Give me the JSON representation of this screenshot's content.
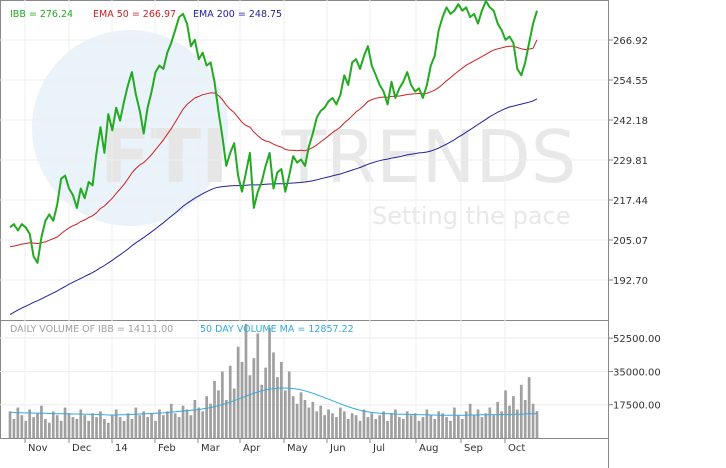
{
  "watermark": {
    "brand_a": "FTI",
    "brand_b": "TRENDS",
    "tagline": "Setting the pace"
  },
  "chart_data": [
    {
      "type": "line",
      "panel": "price",
      "legend": [
        {
          "text": "IBB = 276.24",
          "color": "#22aa22"
        },
        {
          "text": "EMA 50 = 266.97",
          "color": "#cc2222"
        },
        {
          "text": "EMA 200 = 248.75",
          "color": "#22229a"
        }
      ],
      "ylim": [
        180.33,
        279.3
      ],
      "y_ticks": [
        "266.92",
        "254.55",
        "242.18",
        "229.81",
        "217.44",
        "205.07",
        "192.70"
      ],
      "x_ticks": [
        "Nov",
        "Dec",
        "14",
        "Feb",
        "Mar",
        "Apr",
        "May",
        "Jun",
        "Jul",
        "Aug",
        "Sep",
        "Oct"
      ],
      "grid": true,
      "series": [
        {
          "name": "IBB",
          "color": "#22aa22",
          "values": [
            209,
            210,
            208,
            210,
            209,
            207,
            200,
            198,
            206,
            211,
            213,
            211,
            216,
            224,
            225,
            221,
            219,
            215,
            221,
            218,
            223,
            222,
            232,
            240,
            232,
            244,
            239,
            246,
            242,
            248,
            253,
            257,
            250,
            245,
            238,
            246,
            251,
            257,
            259,
            258,
            263,
            266,
            270,
            274,
            275,
            272,
            265,
            267,
            261,
            263,
            259,
            260,
            254,
            245,
            237,
            228,
            232,
            235,
            225,
            220,
            226,
            232,
            215,
            220,
            223,
            228,
            232,
            221,
            226,
            227,
            220,
            225,
            231,
            229,
            230,
            228,
            234,
            238,
            243,
            245,
            246,
            248,
            249,
            247,
            250,
            256,
            253,
            260,
            261,
            258,
            262,
            265,
            259,
            256,
            253,
            251,
            247,
            254,
            249,
            252,
            254,
            257,
            253,
            251,
            252,
            249,
            253,
            259,
            262,
            270,
            274,
            277,
            275,
            276,
            278,
            276,
            277,
            274,
            275,
            272,
            276,
            279,
            277,
            276,
            272,
            270,
            267,
            268,
            266,
            258,
            256,
            260,
            266,
            272,
            276
          ]
        },
        {
          "name": "EMA 50",
          "color": "#cc2222",
          "values": [
            203,
            203.2,
            203.5,
            203.8,
            204,
            204.2,
            204.1,
            204,
            204.2,
            204.5,
            205,
            205.5,
            206,
            207,
            208,
            208.8,
            209.5,
            210,
            210.8,
            211.3,
            212,
            212.6,
            213.5,
            214.8,
            215.6,
            216.8,
            218,
            219.5,
            220.8,
            222.3,
            224,
            225.8,
            227.2,
            228.3,
            229,
            230.2,
            231.5,
            233,
            234.5,
            236,
            237.8,
            239.5,
            241.5,
            243.5,
            245.5,
            247,
            248,
            249,
            249.5,
            250,
            250.3,
            250.6,
            250.5,
            249.8,
            248.5,
            246.8,
            245.5,
            244.5,
            243,
            241.5,
            240.5,
            240,
            238.5,
            237.3,
            236.3,
            235.7,
            235.4,
            234.7,
            234.2,
            233.8,
            233.1,
            232.8,
            232.8,
            232.7,
            232.8,
            232.7,
            233.1,
            233.7,
            234.5,
            235.4,
            236.3,
            237.3,
            238.3,
            239.1,
            240,
            241.3,
            242.3,
            243.5,
            244.7,
            245.6,
            246.7,
            247.9,
            248.5,
            248.9,
            249.1,
            249.3,
            249.2,
            249.5,
            249.5,
            249.6,
            249.8,
            250.1,
            250.2,
            250.3,
            250.4,
            250.3,
            250.4,
            250.9,
            251.4,
            252.2,
            253.2,
            254.3,
            255.3,
            256.3,
            257.3,
            258.2,
            259.1,
            259.8,
            260.5,
            261.1,
            261.8,
            262.5,
            263.2,
            263.8,
            264.2,
            264.5,
            264.8,
            265,
            265,
            264.6,
            264.2,
            264,
            264.1,
            264.4,
            266.97
          ]
        },
        {
          "name": "EMA 200",
          "color": "#22229a",
          "values": [
            182,
            182.7,
            183.4,
            184,
            184.6,
            185.2,
            185.8,
            186.3,
            186.9,
            187.5,
            188.1,
            188.7,
            189.3,
            190,
            190.7,
            191.4,
            192,
            192.6,
            193.2,
            193.8,
            194.4,
            195,
            195.7,
            196.5,
            197.2,
            198,
            198.8,
            199.7,
            200.5,
            201.4,
            202.3,
            203.3,
            204.2,
            205,
            205.8,
            206.7,
            207.6,
            208.5,
            209.5,
            210.4,
            211.4,
            212.4,
            213.4,
            214.4,
            215.5,
            216.4,
            217.2,
            218,
            218.7,
            219.4,
            220,
            220.6,
            221.1,
            221.4,
            221.6,
            221.7,
            221.8,
            221.9,
            221.9,
            221.9,
            222,
            222.1,
            222.1,
            222.1,
            222.2,
            222.3,
            222.4,
            222.4,
            222.5,
            222.5,
            222.5,
            222.6,
            222.7,
            222.8,
            222.9,
            223,
            223.2,
            223.4,
            223.7,
            224,
            224.3,
            224.6,
            224.9,
            225.2,
            225.5,
            225.9,
            226.3,
            226.7,
            227.1,
            227.5,
            228,
            228.5,
            228.9,
            229.3,
            229.6,
            229.9,
            230.1,
            230.4,
            230.6,
            230.8,
            231.1,
            231.4,
            231.6,
            231.8,
            232,
            232.1,
            232.3,
            232.6,
            233,
            233.5,
            234.1,
            234.7,
            235.4,
            236.1,
            236.9,
            237.6,
            238.4,
            239.2,
            240,
            240.8,
            241.6,
            242.4,
            243.2,
            243.9,
            244.6,
            245.2,
            245.7,
            246.2,
            246.5,
            246.8,
            247.1,
            247.4,
            247.7,
            248.1,
            248.75
          ]
        }
      ]
    },
    {
      "type": "bar",
      "panel": "volume",
      "legend": [
        {
          "text": "DAILY VOLUME OF IBB = 14111.00",
          "color": "#a0a0a0"
        },
        {
          "text": "50 DAY VOLUME MA = 12857.22",
          "color": "#33aadd"
        }
      ],
      "ylim": [
        0,
        61000
      ],
      "y_ticks": [
        "52500.00",
        "35000.00",
        "17500.00"
      ],
      "series": [
        {
          "name": "DAILY VOLUME OF IBB",
          "color": "#a0a0a0",
          "values": [
            14000,
            10000,
            16000,
            12000,
            9000,
            15000,
            11000,
            13000,
            17000,
            10000,
            8000,
            14000,
            12000,
            9000,
            16000,
            13000,
            11000,
            10000,
            15000,
            12000,
            9000,
            13000,
            11000,
            14000,
            10000,
            8000,
            12000,
            15000,
            11000,
            9000,
            13000,
            10000,
            16000,
            12000,
            14000,
            11000,
            13000,
            9000,
            15000,
            12000,
            14000,
            18000,
            13000,
            11000,
            17000,
            15000,
            12000,
            20000,
            16000,
            14000,
            22000,
            18000,
            30000,
            25000,
            35000,
            20000,
            38000,
            26000,
            48000,
            40000,
            60000,
            33000,
            42000,
            55000,
            28000,
            37000,
            58000,
            45000,
            32000,
            40000,
            25000,
            35000,
            22000,
            18000,
            24000,
            20000,
            16000,
            19000,
            14000,
            17000,
            12000,
            15000,
            13000,
            11000,
            16000,
            14000,
            10000,
            13000,
            12000,
            9000,
            15000,
            11000,
            13000,
            10000,
            12000,
            14000,
            9000,
            13000,
            15000,
            11000,
            10000,
            14000,
            12000,
            13000,
            9000,
            11000,
            15000,
            12000,
            10000,
            14000,
            13000,
            11000,
            9000,
            16000,
            12000,
            10000,
            14000,
            18000,
            12000,
            15000,
            11000,
            13000,
            16000,
            12000,
            19000,
            14000,
            25000,
            17000,
            22000,
            15000,
            28000,
            20000,
            32000,
            18000,
            14111
          ]
        },
        {
          "name": "50 DAY VOLUME MA",
          "color": "#33aadd",
          "values": [
            13500,
            13400,
            13300,
            13300,
            13200,
            13200,
            13100,
            13100,
            13000,
            13000,
            12900,
            12900,
            12800,
            12800,
            12700,
            12700,
            12600,
            12600,
            12600,
            12500,
            12500,
            12400,
            12400,
            12300,
            12200,
            12100,
            12100,
            12100,
            12200,
            12200,
            12300,
            12400,
            12500,
            12600,
            12700,
            12800,
            12900,
            13000,
            13100,
            13200,
            13400,
            13600,
            13800,
            14000,
            14200,
            14400,
            14600,
            14800,
            15000,
            15300,
            15600,
            16000,
            16500,
            17000,
            17600,
            18200,
            18900,
            19600,
            20400,
            21200,
            22000,
            22800,
            23500,
            24200,
            24800,
            25300,
            25700,
            26000,
            26200,
            26300,
            26300,
            26200,
            26000,
            25700,
            25300,
            24800,
            24200,
            23500,
            22800,
            22000,
            21200,
            20400,
            19600,
            18800,
            18000,
            17200,
            16500,
            15800,
            15200,
            14600,
            14100,
            13700,
            13400,
            13200,
            13000,
            12900,
            12800,
            12700,
            12600,
            12500,
            12500,
            12400,
            12400,
            12300,
            12300,
            12200,
            12200,
            12100,
            12100,
            12000,
            12000,
            12000,
            12000,
            12000,
            12000,
            12000,
            12000,
            12100,
            12100,
            12100,
            12200,
            12200,
            12200,
            12300,
            12300,
            12300,
            12400,
            12400,
            12400,
            12500,
            12500,
            12600,
            12700,
            12800,
            12857.22
          ]
        }
      ]
    }
  ]
}
